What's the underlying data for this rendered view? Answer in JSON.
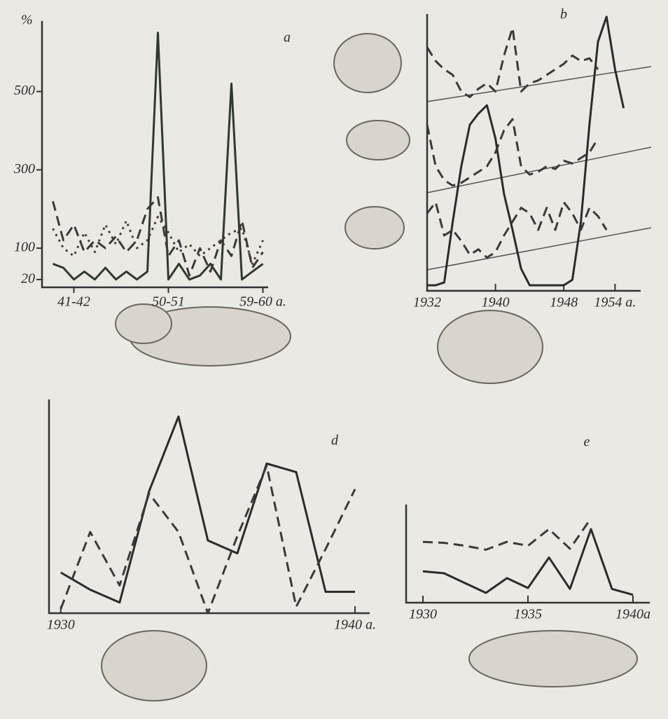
{
  "chart_data": [
    {
      "type": "line",
      "title": "a",
      "y_label": "%",
      "categories": [
        null,
        null,
        "41-42",
        null,
        null,
        null,
        null,
        null,
        null,
        null,
        null,
        "50-51",
        null,
        null,
        null,
        null,
        null,
        null,
        null,
        null,
        "59-60 a."
      ],
      "ylim": [
        0,
        680
      ],
      "yticks": [
        20,
        100,
        300,
        500
      ],
      "series": [
        {
          "color": "#2f3a2a",
          "line_style": "solid",
          "values": [
            60,
            50,
            20,
            40,
            20,
            50,
            20,
            40,
            20,
            40,
            650,
            20,
            60,
            20,
            30,
            60,
            20,
            520,
            20,
            40,
            60
          ]
        },
        {
          "color": "#4a3d2a",
          "line_style": "dotted",
          "values": [
            150,
            100,
            80,
            140,
            90,
            160,
            110,
            170,
            100,
            120,
            180,
            140,
            90,
            110,
            80,
            100,
            120,
            140,
            150,
            60,
            120
          ]
        },
        {
          "color": "#3a3a3a",
          "line_style": "dashed",
          "values": [
            220,
            120,
            160,
            90,
            120,
            100,
            130,
            90,
            120,
            200,
            230,
            80,
            120,
            30,
            100,
            40,
            120,
            80,
            170,
            50,
            90
          ]
        }
      ]
    },
    {
      "type": "line",
      "title": "b",
      "x": [
        1932,
        1933,
        1934,
        1935,
        1936,
        1937,
        1938,
        1939,
        1940,
        1941,
        1942,
        1943,
        1944,
        1945,
        1946,
        1947,
        1948,
        1949,
        1950,
        1951,
        1952,
        1953,
        1954,
        1955
      ],
      "xlim": [
        1932,
        1957
      ],
      "xticks": [
        1932,
        1940,
        1948,
        {
          "value": 1954,
          "label": "1954 a."
        }
      ],
      "ylim": [
        0,
        100
      ],
      "series": [
        {
          "color": "#2b2b2b",
          "line_style": "solid",
          "values": [
            2,
            2,
            3,
            25,
            45,
            60,
            64,
            67,
            55,
            35,
            22,
            8,
            2,
            2,
            2,
            2,
            2,
            4,
            25,
            60,
            90,
            99,
            80,
            66
          ]
        },
        {
          "color": "#3a3a3a",
          "line_style": "dashed",
          "values": [
            88,
            83,
            80,
            78,
            72,
            70,
            73,
            75,
            72,
            85,
            95,
            72,
            75,
            76,
            78,
            80,
            82,
            85,
            83,
            84,
            80,
            null,
            null,
            null
          ]
        },
        {
          "color": "#3a3a3a",
          "line_style": "dashed",
          "values": [
            60,
            45,
            40,
            38,
            39,
            41,
            43,
            45,
            50,
            58,
            62,
            45,
            42,
            43,
            45,
            44,
            47,
            46,
            48,
            50,
            55,
            null,
            null,
            null
          ]
        },
        {
          "color": "#3a3a3a",
          "line_style": "dashed",
          "values": [
            28,
            32,
            20,
            22,
            18,
            13,
            15,
            12,
            14,
            20,
            25,
            30,
            28,
            22,
            30,
            22,
            32,
            28,
            22,
            30,
            27,
            22,
            null,
            null
          ]
        }
      ]
    },
    {
      "type": "line",
      "title": "d",
      "x": [
        1930,
        1931,
        1932,
        1933,
        1934,
        1935,
        1936,
        1937,
        1938,
        1939,
        1940
      ],
      "xlim": [
        1929.6,
        1940.5
      ],
      "xticks": [
        1930,
        {
          "value": 1940,
          "label": "1940 a."
        }
      ],
      "ylim": [
        0,
        100
      ],
      "series": [
        {
          "color": "#2b2b2b",
          "line_style": "solid",
          "values": [
            19,
            11,
            5,
            57,
            92,
            34,
            28,
            70,
            66,
            10,
            10
          ]
        },
        {
          "color": "#3a3a3a",
          "line_style": "dashed",
          "values": [
            2,
            38,
            13,
            56,
            38,
            0,
            36,
            69,
            3,
            30,
            58
          ]
        }
      ]
    },
    {
      "type": "line",
      "title": "e",
      "x": [
        1930,
        1931,
        1932,
        1933,
        1934,
        1935,
        1936,
        1937,
        1938,
        1939,
        1940
      ],
      "xlim": [
        1929.2,
        1940.8
      ],
      "xticks": [
        1930,
        1935,
        {
          "value": 1940,
          "label": "1940a"
        }
      ],
      "ylim": [
        0,
        100
      ],
      "series": [
        {
          "color": "#3a3a3a",
          "line_style": "dashed",
          "values": [
            62,
            61,
            58,
            54,
            62,
            58,
            75,
            55,
            86,
            null,
            null
          ]
        },
        {
          "color": "#2b2b2b",
          "line_style": "solid",
          "values": [
            32,
            30,
            20,
            10,
            25,
            15,
            46,
            14,
            75,
            14,
            8
          ]
        }
      ]
    }
  ]
}
